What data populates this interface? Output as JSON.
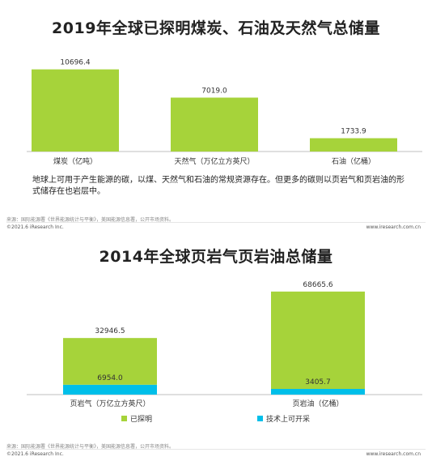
{
  "colors": {
    "green": "#a6d33a",
    "cyan": "#00bfe9",
    "axis": "#bfbfbf",
    "label": "#333333"
  },
  "chart_data": [
    {
      "type": "bar",
      "title": "2019年全球已探明煤炭、石油及天然气总储量",
      "categories": [
        "煤炭（亿吨）",
        "天然气（万亿立方英尺）",
        "石油（亿桶）"
      ],
      "values": [
        10696.4,
        7019.0,
        1733.9
      ],
      "value_labels": [
        "10696.4",
        "7019.0",
        "1733.9"
      ],
      "ylim": [
        0,
        11500
      ],
      "grid": false,
      "note": "地球上可用于产生能源的碳，以煤、天然气和石油的常规资源存在。但更多的碳则以页岩气和页岩油的形式储存在也岩层中。",
      "source": "来源：国际能源署《世界能源统计与平衡》，美国能源信息署，公开市场资料。",
      "copyright": "©2021.6 iResearch Inc.",
      "site": "www.iresearch.com.cn"
    },
    {
      "type": "bar",
      "stacked": true,
      "title": "2014年全球页岩气页岩油总储量",
      "categories": [
        "页岩气（万亿立方英尺）",
        "页岩油（亿桶）"
      ],
      "series": [
        {
          "name": "技术上可开采",
          "values": [
            6954.0,
            3405.7
          ],
          "labels": [
            "6954.0",
            "3405.7"
          ]
        },
        {
          "name": "已探明",
          "values": [
            32946.5,
            68665.6
          ],
          "labels": [
            "32946.5",
            "68665.6"
          ]
        }
      ],
      "legend_position": "bottom",
      "grid": false,
      "source": "来源：国际能源署《世界能源统计与平衡》，美国能源信息署，公开市场资料。",
      "copyright": "©2021.6 iResearch Inc.",
      "site": "www.iresearch.com.cn"
    }
  ]
}
